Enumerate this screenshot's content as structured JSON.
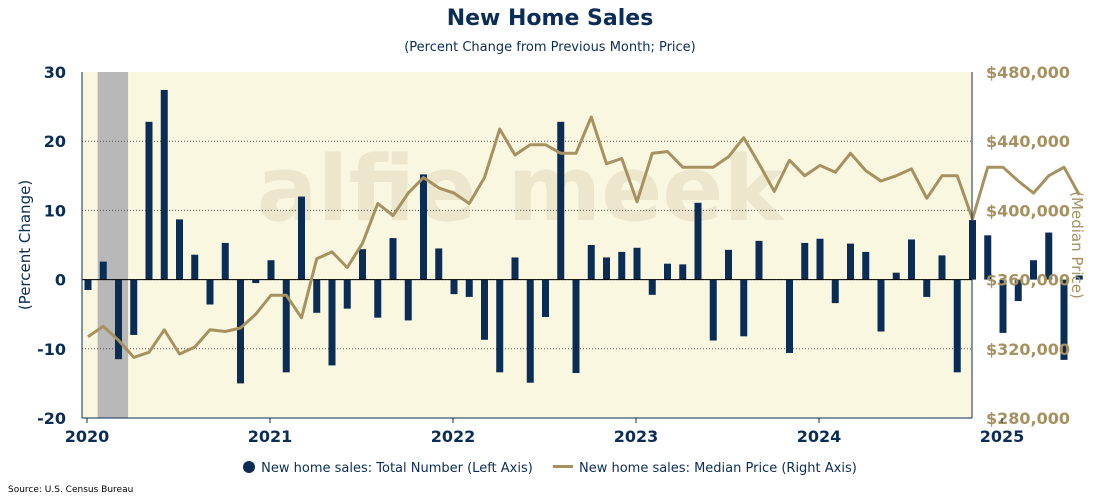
{
  "chart_data": {
    "type": "bar+line",
    "title": "New Home Sales",
    "subtitle": "(Percent Change from Previous Month; Price)",
    "ylabel_left": "(Percent Change)",
    "ylabel_right": "(Median Price)",
    "left_ylim": [
      -20,
      30
    ],
    "left_ticks": [
      "30",
      "20",
      "10",
      "0",
      "-10",
      "-20"
    ],
    "right_ylim": [
      280000,
      480000
    ],
    "right_ticks": [
      "$480,000",
      "$440,000",
      "$400,000",
      "$360,000",
      "$320,000",
      "$280,000"
    ],
    "x_ticks": [
      "2020",
      "2021",
      "2022",
      "2023",
      "2024",
      "2025"
    ],
    "start": "2020-01",
    "recession": {
      "start_index": 1,
      "end_index": 3
    },
    "series": [
      {
        "name": "New home sales: Total Number (Left Axis)",
        "type": "bar",
        "color": "#0b2d55",
        "values": [
          -1.5,
          2.6,
          -11.5,
          -8.0,
          22.8,
          27.4,
          8.7,
          3.6,
          -3.6,
          5.3,
          -15.0,
          -0.5,
          2.8,
          -13.4,
          12.0,
          -4.8,
          -12.4,
          -4.2,
          4.4,
          -5.5,
          6.0,
          -5.9,
          15.2,
          4.5,
          -2.1,
          -2.5,
          -8.7,
          -13.4,
          3.2,
          -14.9,
          -5.4,
          22.8,
          -13.5,
          5.0,
          3.2,
          4.0,
          4.6,
          -2.2,
          2.3,
          2.2,
          11.1,
          -8.8,
          4.3,
          -8.2,
          5.6,
          0.0,
          -10.6,
          5.3,
          5.9,
          -3.4,
          5.2,
          4.0,
          -7.5,
          1.0,
          5.8,
          -2.5,
          3.5,
          -13.4,
          8.6,
          6.4,
          -7.7,
          -3.1,
          2.8,
          6.8,
          -11.6,
          0.6
        ]
      },
      {
        "name": "New home sales: Median Price (Right Axis)",
        "type": "line",
        "color": "#a69160",
        "values": [
          327000,
          333000,
          325000,
          315000,
          318000,
          331000,
          317000,
          321000,
          331000,
          330000,
          332000,
          340000,
          351000,
          351000,
          338000,
          372000,
          376000,
          367000,
          381000,
          404000,
          397000,
          410000,
          419000,
          413000,
          410000,
          404000,
          419000,
          447000,
          432000,
          438000,
          438000,
          433000,
          433000,
          454000,
          427000,
          430000,
          405000,
          433000,
          434000,
          425000,
          425000,
          425000,
          431000,
          442000,
          427000,
          411000,
          429000,
          420000,
          426000,
          422000,
          433000,
          423000,
          417000,
          420000,
          424000,
          407000,
          420000,
          420000,
          395000,
          425000,
          425000,
          417000,
          410000,
          420000,
          425000,
          409000
        ]
      }
    ]
  },
  "legend": {
    "bars": "New home sales: Total Number (Left Axis)",
    "line": "New home sales: Median Price (Right Axis)"
  },
  "colors": {
    "bar": "#0b2d55",
    "line": "#a69160",
    "plot_bg": "#faf7e1",
    "recession": "#b8b8b8"
  },
  "watermark": "alfie meek",
  "source": "Source: U.S. Census Bureau"
}
